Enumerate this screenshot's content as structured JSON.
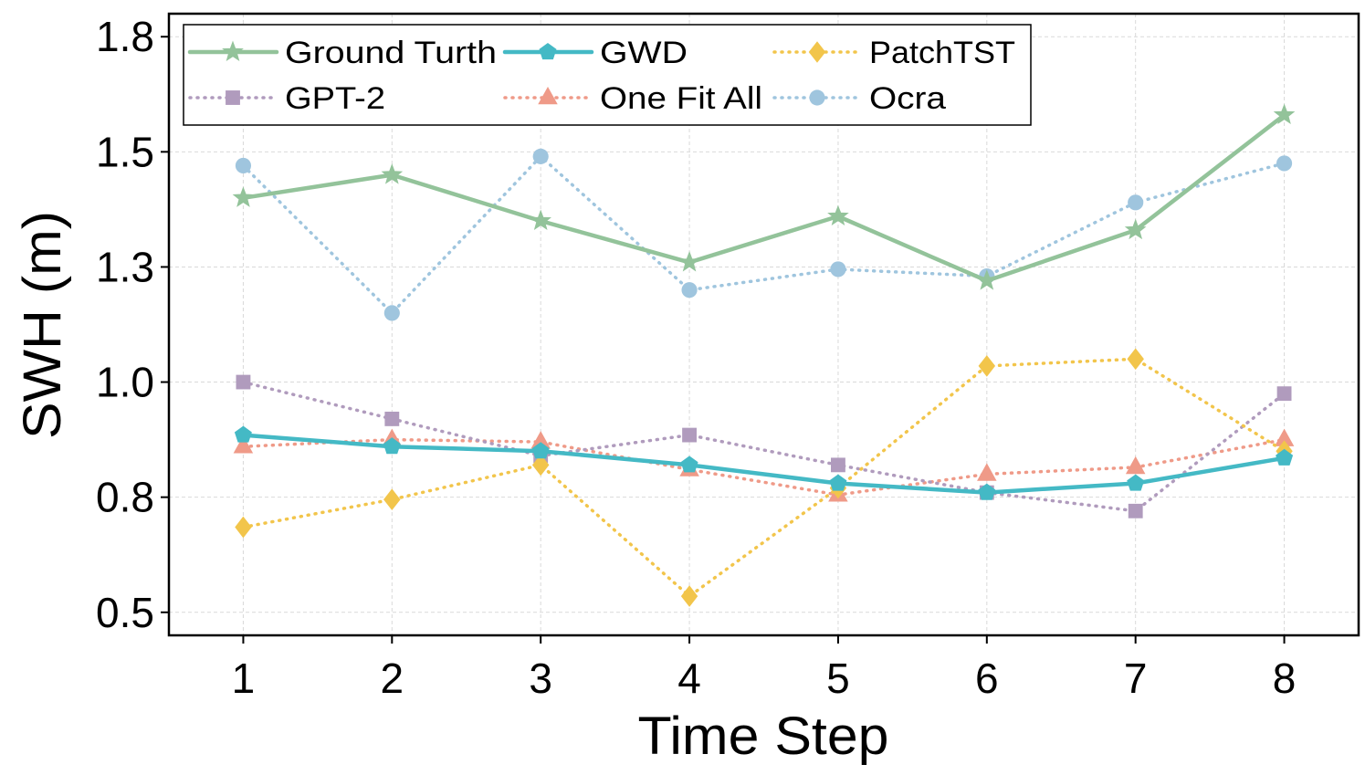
{
  "chart_data": {
    "type": "line",
    "title": "",
    "xlabel": "Time Step",
    "ylabel": "SWH (m)",
    "x": [
      1,
      2,
      3,
      4,
      5,
      6,
      7,
      8
    ],
    "xlim": [
      0.5,
      8.5
    ],
    "ylim": [
      0.45,
      1.8
    ],
    "yticks": [
      0.5,
      0.75,
      1.0,
      1.25,
      1.5,
      1.75
    ],
    "ytick_labels": [
      "0.5",
      "0.8",
      "1.0",
      "1.3",
      "1.5",
      "1.8"
    ],
    "xtick_labels": [
      "1",
      "2",
      "3",
      "4",
      "5",
      "6",
      "7",
      "8"
    ],
    "grid": true,
    "legend_position": "top-left",
    "series": [
      {
        "name": "Ground Turth",
        "color": "#93c39a",
        "style": "solid",
        "marker": "star",
        "values": [
          1.4,
          1.45,
          1.35,
          1.26,
          1.36,
          1.22,
          1.33,
          1.58
        ]
      },
      {
        "name": "GWD",
        "color": "#44b9c5",
        "style": "solid",
        "marker": "pentagon",
        "values": [
          0.885,
          0.86,
          0.85,
          0.82,
          0.78,
          0.76,
          0.78,
          0.835
        ]
      },
      {
        "name": "PatchTST",
        "color": "#f2c54b",
        "style": "dotted",
        "marker": "diamond",
        "values": [
          0.685,
          0.745,
          0.82,
          0.535,
          0.77,
          1.035,
          1.05,
          0.85
        ]
      },
      {
        "name": "GPT-2",
        "color": "#b09bbd",
        "style": "dotted",
        "marker": "square",
        "values": [
          1.0,
          0.92,
          0.84,
          0.885,
          0.82,
          0.76,
          0.72,
          0.975
        ]
      },
      {
        "name": "One Fit All",
        "color": "#ef9a88",
        "style": "dotted",
        "marker": "triangle",
        "values": [
          0.86,
          0.875,
          0.87,
          0.81,
          0.755,
          0.8,
          0.815,
          0.875
        ]
      },
      {
        "name": "Ocra",
        "color": "#9fc5de",
        "style": "dotted",
        "marker": "circle",
        "values": [
          1.47,
          1.15,
          1.49,
          1.2,
          1.245,
          1.23,
          1.39,
          1.475
        ]
      }
    ]
  }
}
